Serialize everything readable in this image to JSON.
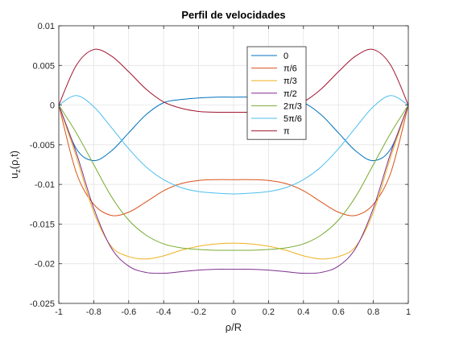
{
  "chart_data": {
    "type": "line",
    "title": "Perfil de velocidades",
    "xlabel": "ρ/R",
    "ylabel": "u",
    "ylabel_sub": "z",
    "ylabel_tail": "(ρ,t)",
    "xlim": [
      -1,
      1
    ],
    "ylim": [
      -0.025,
      0.01
    ],
    "xticks": [
      -1,
      -0.8,
      -0.6,
      -0.4,
      -0.2,
      0,
      0.2,
      0.4,
      0.6,
      0.8,
      1
    ],
    "xtick_labels": [
      "-1",
      "-0.8",
      "-0.6",
      "-0.4",
      "-0.2",
      "0",
      "0.2",
      "0.4",
      "0.6",
      "0.8",
      "1"
    ],
    "yticks": [
      -0.025,
      -0.02,
      -0.015,
      -0.01,
      -0.005,
      0,
      0.005,
      0.01
    ],
    "ytick_labels": [
      "-0.025",
      "-0.02",
      "-0.015",
      "-0.01",
      "-0.005",
      "0",
      "0.005",
      "0.01"
    ],
    "grid": true,
    "legend_position": "top-right",
    "x": [
      -1.0,
      -0.9,
      -0.8,
      -0.7,
      -0.6,
      -0.5,
      -0.4,
      -0.3,
      -0.2,
      -0.1,
      0.0,
      0.1,
      0.2,
      0.3,
      0.4,
      0.5,
      0.6,
      0.7,
      0.8,
      0.9,
      1.0
    ],
    "series": [
      {
        "name": "0",
        "color": "#0072BD",
        "values": [
          0,
          -0.0055,
          -0.007,
          -0.0058,
          -0.0035,
          -0.0012,
          0.0003,
          0.0007,
          0.0009,
          0.001,
          0.001,
          0.001,
          0.0009,
          0.0007,
          0.0003,
          -0.0012,
          -0.0035,
          -0.0058,
          -0.007,
          -0.0055,
          0
        ]
      },
      {
        "name": "π/6",
        "color": "#D95319",
        "values": [
          0,
          -0.0085,
          -0.0125,
          -0.0139,
          -0.0135,
          -0.0122,
          -0.0108,
          -0.0099,
          -0.0095,
          -0.0094,
          -0.0094,
          -0.0094,
          -0.0095,
          -0.0099,
          -0.0108,
          -0.0122,
          -0.0135,
          -0.0139,
          -0.0125,
          -0.0085,
          0
        ]
      },
      {
        "name": "π/3",
        "color": "#EDB120",
        "values": [
          0,
          -0.0065,
          -0.0135,
          -0.0178,
          -0.0191,
          -0.0194,
          -0.019,
          -0.0183,
          -0.0178,
          -0.0175,
          -0.0174,
          -0.0175,
          -0.0178,
          -0.0183,
          -0.019,
          -0.0194,
          -0.0191,
          -0.0178,
          -0.0135,
          -0.0065,
          0
        ]
      },
      {
        "name": "π/2",
        "color": "#7E2F8E",
        "values": [
          0,
          -0.006,
          -0.013,
          -0.018,
          -0.0203,
          -0.0211,
          -0.0212,
          -0.021,
          -0.0208,
          -0.0207,
          -0.0207,
          -0.0207,
          -0.0208,
          -0.021,
          -0.0212,
          -0.0211,
          -0.0203,
          -0.018,
          -0.013,
          -0.006,
          0
        ]
      },
      {
        "name": "2π/3",
        "color": "#77AC30",
        "values": [
          0,
          -0.0035,
          -0.0075,
          -0.0115,
          -0.0145,
          -0.0164,
          -0.0175,
          -0.018,
          -0.0182,
          -0.0183,
          -0.0183,
          -0.0183,
          -0.0182,
          -0.018,
          -0.0175,
          -0.0164,
          -0.0145,
          -0.0115,
          -0.0075,
          -0.0035,
          0
        ]
      },
      {
        "name": "5π/6",
        "color": "#4DBEEE",
        "values": [
          0,
          0.0012,
          -0.0002,
          -0.0028,
          -0.0055,
          -0.0078,
          -0.0094,
          -0.0104,
          -0.0109,
          -0.0111,
          -0.0112,
          -0.0111,
          -0.0109,
          -0.0104,
          -0.0094,
          -0.0078,
          -0.0055,
          -0.0028,
          -0.0002,
          0.0012,
          0
        ]
      },
      {
        "name": "π",
        "color": "#A2142F",
        "values": [
          0,
          0.005,
          0.007,
          0.0062,
          0.0042,
          0.002,
          0.0004,
          -0.0004,
          -0.0008,
          -0.0009,
          -0.0009,
          -0.0009,
          -0.0008,
          -0.0004,
          0.0004,
          0.002,
          0.0042,
          0.0062,
          0.007,
          0.005,
          0
        ]
      }
    ]
  }
}
